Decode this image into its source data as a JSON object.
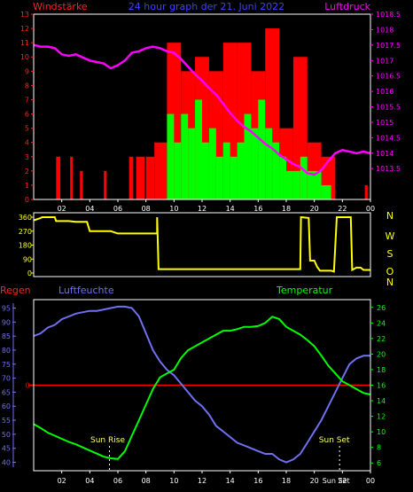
{
  "header": {
    "left_title": "Windstärke",
    "center_title": "24 hour graph der 21. Juni 2022",
    "right_title": "Luftdruck"
  },
  "colors": {
    "wind_axis": "#ff2020",
    "pressure": "#ff00ff",
    "gust": "#ff0000",
    "wind": "#00ff00",
    "direction": "#ffff00",
    "humidity": "#7070f0",
    "temperature": "#00ff00",
    "rain": "#ff0000",
    "title_blue": "#4040ff",
    "frame": "#ffffff"
  },
  "time_axis": {
    "labels": [
      "02",
      "04",
      "06",
      "08",
      "10",
      "12",
      "14",
      "16",
      "18",
      "20",
      "22",
      "00"
    ]
  },
  "chart_data": [
    {
      "type": "bar",
      "title": "24 hour graph der 21. Juni 2022",
      "left_axis": {
        "label": "Windstärke",
        "range": [
          0,
          13
        ],
        "ticks": [
          "0",
          "1",
          "2",
          "3",
          "4",
          "5",
          "6",
          "7",
          "8",
          "9",
          "10",
          "11",
          "12",
          "13"
        ]
      },
      "right_axis": {
        "label": "Luftdruck",
        "range": [
          1012.5,
          1018.5
        ],
        "ticks": [
          "1013.5",
          "1014",
          "1014.5",
          "1015",
          "1015.5",
          "1016",
          "1016.5",
          "1017",
          "1017.5",
          "1018",
          "1018.5"
        ]
      },
      "x_range": [
        0,
        24
      ],
      "gust_blocks": [
        {
          "x0": 0.0,
          "x1": 1.6,
          "v": 0
        },
        {
          "x0": 1.6,
          "x1": 1.9,
          "v": 3
        },
        {
          "x0": 2.6,
          "x1": 2.8,
          "v": 3
        },
        {
          "x0": 3.3,
          "x1": 3.5,
          "v": 2
        },
        {
          "x0": 5.0,
          "x1": 5.2,
          "v": 2
        },
        {
          "x0": 6.8,
          "x1": 7.1,
          "v": 3
        },
        {
          "x0": 7.3,
          "x1": 7.9,
          "v": 3
        },
        {
          "x0": 8.0,
          "x1": 8.6,
          "v": 3
        },
        {
          "x0": 8.6,
          "x1": 9.5,
          "v": 4
        },
        {
          "x0": 9.5,
          "x1": 10.5,
          "v": 11
        },
        {
          "x0": 10.5,
          "x1": 11.5,
          "v": 9
        },
        {
          "x0": 11.5,
          "x1": 12.5,
          "v": 10
        },
        {
          "x0": 12.5,
          "x1": 13.5,
          "v": 9
        },
        {
          "x0": 13.5,
          "x1": 14.5,
          "v": 11
        },
        {
          "x0": 14.5,
          "x1": 15.5,
          "v": 11
        },
        {
          "x0": 15.5,
          "x1": 16.5,
          "v": 9
        },
        {
          "x0": 16.5,
          "x1": 17.5,
          "v": 12
        },
        {
          "x0": 17.5,
          "x1": 18.5,
          "v": 5
        },
        {
          "x0": 18.5,
          "x1": 19.5,
          "v": 10
        },
        {
          "x0": 19.5,
          "x1": 20.5,
          "v": 4
        },
        {
          "x0": 20.5,
          "x1": 21.5,
          "v": 3
        },
        {
          "x0": 23.6,
          "x1": 23.8,
          "v": 1
        }
      ],
      "wind_blocks": [
        {
          "x0": 9.5,
          "x1": 10.0,
          "v": 6
        },
        {
          "x0": 10.0,
          "x1": 10.5,
          "v": 4
        },
        {
          "x0": 10.5,
          "x1": 11.0,
          "v": 6
        },
        {
          "x0": 11.0,
          "x1": 11.5,
          "v": 5
        },
        {
          "x0": 11.5,
          "x1": 12.0,
          "v": 7
        },
        {
          "x0": 12.0,
          "x1": 12.5,
          "v": 4
        },
        {
          "x0": 12.5,
          "x1": 13.0,
          "v": 5
        },
        {
          "x0": 13.0,
          "x1": 13.5,
          "v": 3
        },
        {
          "x0": 13.5,
          "x1": 14.0,
          "v": 4
        },
        {
          "x0": 14.0,
          "x1": 14.5,
          "v": 3
        },
        {
          "x0": 14.5,
          "x1": 15.0,
          "v": 4
        },
        {
          "x0": 15.0,
          "x1": 15.5,
          "v": 6
        },
        {
          "x0": 15.5,
          "x1": 16.0,
          "v": 5
        },
        {
          "x0": 16.0,
          "x1": 16.5,
          "v": 7
        },
        {
          "x0": 16.5,
          "x1": 17.0,
          "v": 5
        },
        {
          "x0": 17.0,
          "x1": 17.5,
          "v": 4
        },
        {
          "x0": 17.5,
          "x1": 18.0,
          "v": 3
        },
        {
          "x0": 18.0,
          "x1": 18.5,
          "v": 2
        },
        {
          "x0": 18.5,
          "x1": 19.0,
          "v": 2
        },
        {
          "x0": 19.0,
          "x1": 19.5,
          "v": 3
        },
        {
          "x0": 19.5,
          "x1": 20.5,
          "v": 2
        },
        {
          "x0": 20.5,
          "x1": 21.2,
          "v": 1
        }
      ],
      "pressure": {
        "x": [
          0,
          0.5,
          1,
          1.5,
          2,
          2.5,
          3,
          3.5,
          4,
          4.5,
          5,
          5.5,
          6,
          6.5,
          7,
          7.5,
          8,
          8.5,
          9,
          9.5,
          10,
          10.5,
          11,
          11.5,
          12,
          12.5,
          13,
          13.5,
          14,
          14.5,
          15,
          15.5,
          16,
          16.5,
          17,
          17.5,
          18,
          18.5,
          19,
          19.5,
          20,
          20.5,
          21,
          21.5,
          22,
          22.5,
          23,
          23.5,
          24
        ],
        "y": [
          1017.5,
          1017.45,
          1017.45,
          1017.4,
          1017.2,
          1017.15,
          1017.2,
          1017.1,
          1017.0,
          1016.95,
          1016.9,
          1016.75,
          1016.85,
          1017.0,
          1017.25,
          1017.3,
          1017.4,
          1017.45,
          1017.4,
          1017.3,
          1017.25,
          1017.05,
          1016.8,
          1016.55,
          1016.35,
          1016.1,
          1015.9,
          1015.6,
          1015.3,
          1015.05,
          1014.85,
          1014.7,
          1014.5,
          1014.3,
          1014.15,
          1013.95,
          1013.8,
          1013.65,
          1013.55,
          1013.35,
          1013.3,
          1013.45,
          1013.75,
          1014.0,
          1014.1,
          1014.05,
          1014.0,
          1014.05,
          1014.0
        ]
      }
    },
    {
      "type": "line",
      "left_axis": {
        "ticks": [
          "0",
          "90",
          "180",
          "270",
          "360"
        ],
        "range": [
          0,
          360
        ]
      },
      "right_axis": {
        "ticks": [
          "N",
          "W",
          "S",
          "O",
          "N"
        ]
      },
      "x_range": [
        0,
        24
      ],
      "direction": {
        "x": [
          0,
          0.5,
          0.6,
          1.5,
          1.6,
          2.5,
          3.0,
          3.8,
          4.0,
          4.4,
          5.5,
          6.0,
          8.8,
          8.8,
          8.9,
          19.0,
          19.05,
          19.1,
          19.6,
          19.7,
          20.0,
          20.2,
          20.4,
          21.2,
          21.4,
          21.6,
          22.5,
          22.6,
          22.7,
          23.0,
          23.3,
          23.5,
          24
        ],
        "y": [
          340,
          355,
          360,
          360,
          335,
          335,
          330,
          330,
          270,
          270,
          270,
          255,
          255,
          360,
          25,
          25,
          360,
          360,
          355,
          80,
          80,
          40,
          15,
          15,
          10,
          360,
          360,
          360,
          20,
          35,
          35,
          20,
          20
        ]
      }
    },
    {
      "type": "line",
      "left_labels": {
        "rain": "Regen",
        "humidity": "Luftfeuchte"
      },
      "right_label": "Temperatur",
      "left_axis": {
        "range": [
          37,
          98
        ],
        "ticks": [
          "40",
          "45",
          "50",
          "55",
          "60",
          "65",
          "70",
          "75",
          "80",
          "85",
          "90",
          "95"
        ]
      },
      "right_axis": {
        "range": [
          5,
          27
        ],
        "ticks": [
          "6",
          "8",
          "10",
          "12",
          "14",
          "16",
          "18",
          "20",
          "22",
          "24",
          "26"
        ]
      },
      "rain_axis": {
        "tick": "0"
      },
      "x_range": [
        0,
        24
      ],
      "annotations": {
        "sun_rise": "Sun Rise",
        "sun_set": "Sun Set",
        "extra": "Sun Set"
      },
      "sun_rise_hour": 5.4,
      "sun_set_hour": 21.8,
      "humidity": {
        "x": [
          0,
          0.5,
          1,
          1.5,
          2,
          2.5,
          3,
          3.5,
          4,
          4.5,
          5,
          5.5,
          6,
          6.5,
          7,
          7.5,
          8,
          8.5,
          9,
          9.5,
          10,
          10.5,
          11,
          11.5,
          12,
          12.5,
          13,
          13.5,
          14,
          14.5,
          15,
          15.5,
          16,
          16.5,
          17,
          17.5,
          18,
          18.5,
          19,
          19.5,
          20,
          20.5,
          21,
          21.5,
          22,
          22.5,
          23,
          23.5,
          24
        ],
        "y": [
          85,
          86,
          88,
          89,
          91,
          92,
          93,
          93.5,
          94,
          94,
          94.5,
          95,
          95.5,
          95.5,
          95,
          92,
          86,
          80,
          76,
          73,
          71,
          68,
          65,
          62,
          60,
          57,
          53,
          51,
          49,
          47,
          46,
          45,
          44,
          43,
          43,
          41,
          40,
          41,
          43,
          47,
          51,
          55,
          60,
          65,
          70,
          75,
          77,
          78,
          78
        ]
      },
      "temperature": {
        "x": [
          0,
          0.5,
          1,
          1.5,
          2,
          2.5,
          3,
          3.5,
          4,
          4.5,
          5,
          5.5,
          6,
          6.5,
          7,
          7.5,
          8,
          8.5,
          9,
          9.5,
          10,
          10.5,
          11,
          11.5,
          12,
          12.5,
          13,
          13.5,
          14,
          14.5,
          15,
          15.5,
          16,
          16.5,
          17,
          17.5,
          18,
          18.5,
          19,
          19.5,
          20,
          20.5,
          21,
          21.5,
          22,
          22.5,
          23,
          23.5,
          24
        ],
        "y": [
          11,
          10.5,
          9.9,
          9.5,
          9.1,
          8.7,
          8.4,
          8.0,
          7.6,
          7.2,
          6.8,
          6.6,
          6.5,
          7.5,
          9.5,
          11.5,
          13.5,
          15.5,
          17,
          17.5,
          18,
          19.5,
          20.5,
          21,
          21.5,
          22,
          22.5,
          23,
          23,
          23.2,
          23.5,
          23.5,
          23.6,
          24,
          24.8,
          24.5,
          23.5,
          23,
          22.5,
          21.8,
          21,
          19.8,
          18.5,
          17.5,
          16.5,
          16,
          15.5,
          15,
          14.8
        ]
      }
    }
  ]
}
